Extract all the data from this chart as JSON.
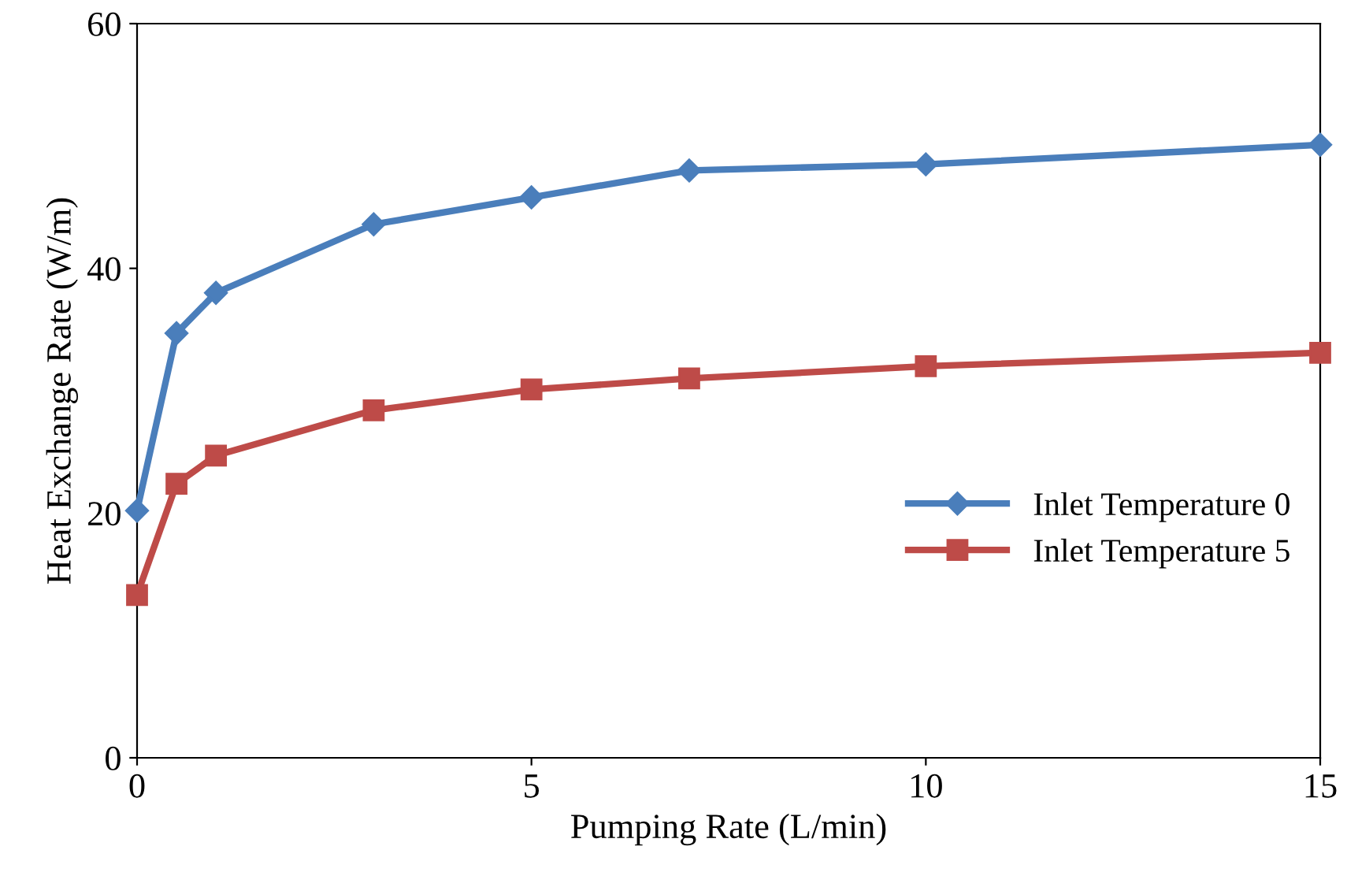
{
  "chart_data": {
    "type": "line",
    "xlabel": "Pumping Rate (L/min)",
    "ylabel": "Heat Exchange Rate (W/m)",
    "x": [
      0,
      0.5,
      1,
      3,
      5,
      7,
      10,
      15
    ],
    "series": [
      {
        "name": "Inlet Temperature 0",
        "color": "#4a7ebb",
        "marker": "diamond",
        "values": [
          20.2,
          34.7,
          38.0,
          43.6,
          45.8,
          48.0,
          48.5,
          50.1
        ]
      },
      {
        "name": "Inlet Temperature 5",
        "color": "#be4b48",
        "marker": "square",
        "values": [
          13.3,
          22.4,
          24.7,
          28.4,
          30.1,
          31.0,
          32.0,
          33.1
        ]
      }
    ],
    "xlim": [
      0,
      15
    ],
    "xticks": [
      0,
      5,
      10,
      15
    ],
    "ylim": [
      0,
      60
    ],
    "yticks": [
      0,
      20,
      40,
      60
    ],
    "grid": false,
    "legend": "right",
    "line_style": "solid"
  }
}
